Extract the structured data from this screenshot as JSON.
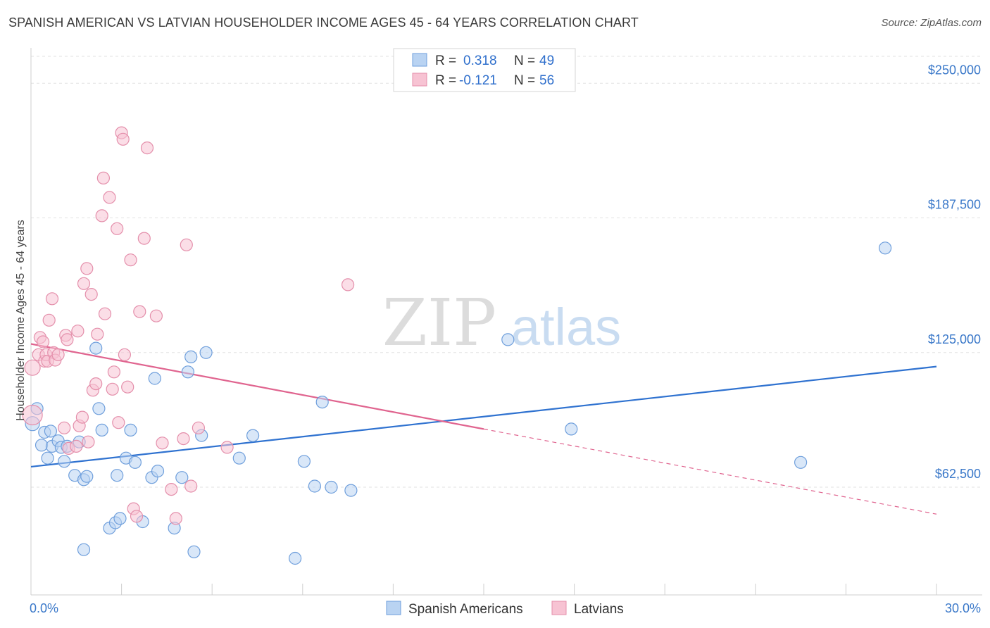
{
  "header": {
    "title": "SPANISH AMERICAN VS LATVIAN HOUSEHOLDER INCOME AGES 45 - 64 YEARS CORRELATION CHART",
    "source": "Source: ZipAtlas.com"
  },
  "watermark": {
    "zip": "ZIP",
    "atlas": "atlas"
  },
  "colors": {
    "blue": "#2f72d0",
    "blue_fill": "#b9d3f2",
    "pink": "#e0648f",
    "pink_fill": "#f7c3d3",
    "tick": "#3a78c9"
  },
  "legend": {
    "rows": [
      {
        "r_label": "R =",
        "r_value": "0.318",
        "n_label": "N =",
        "n_value": "49"
      },
      {
        "r_label": "R =",
        "r_value": "-0.121",
        "n_label": "N =",
        "n_value": "56"
      }
    ]
  },
  "bottom_legend": [
    "Spanish Americans",
    "Latvians"
  ],
  "chart_data": {
    "type": "scatter",
    "title": "SPANISH AMERICAN VS LATVIAN HOUSEHOLDER INCOME AGES 45 - 64 YEARS CORRELATION CHART",
    "xlabel": "",
    "ylabel": "Householder Income Ages 45 - 64 years",
    "xlim": [
      0,
      30
    ],
    "ylim": [
      12500,
      262500
    ],
    "x_tick_labels": [
      "0.0%",
      "30.0%"
    ],
    "y_ticks": [
      62500,
      125000,
      187500,
      250000
    ],
    "y_tick_labels": [
      "$62,500",
      "$125,000",
      "$187,500",
      "$250,000"
    ],
    "series": [
      {
        "name": "Spanish Americans",
        "R": 0.318,
        "N": 49,
        "trend": {
          "x0": 0,
          "y0": 72000,
          "x1": 30,
          "y1": 118500
        },
        "points": [
          [
            0.05,
            92000
          ],
          [
            0.2,
            99000
          ],
          [
            0.35,
            82000
          ],
          [
            0.45,
            88000
          ],
          [
            0.55,
            76000
          ],
          [
            0.65,
            88500
          ],
          [
            0.7,
            81500
          ],
          [
            0.9,
            84000
          ],
          [
            1.0,
            81000
          ],
          [
            1.1,
            74500
          ],
          [
            1.2,
            81500
          ],
          [
            1.45,
            68000
          ],
          [
            1.6,
            83500
          ],
          [
            1.75,
            66000
          ],
          [
            1.85,
            67500
          ],
          [
            1.75,
            33500
          ],
          [
            2.15,
            127000
          ],
          [
            2.25,
            99000
          ],
          [
            2.35,
            89000
          ],
          [
            2.6,
            43500
          ],
          [
            2.8,
            46000
          ],
          [
            2.85,
            68000
          ],
          [
            2.95,
            48000
          ],
          [
            3.15,
            76000
          ],
          [
            3.3,
            89000
          ],
          [
            3.45,
            74000
          ],
          [
            3.7,
            46500
          ],
          [
            4.0,
            67000
          ],
          [
            4.1,
            113000
          ],
          [
            4.2,
            70000
          ],
          [
            4.75,
            43500
          ],
          [
            5.0,
            67000
          ],
          [
            5.2,
            116000
          ],
          [
            5.3,
            123000
          ],
          [
            5.4,
            32500
          ],
          [
            5.65,
            86500
          ],
          [
            5.8,
            125000
          ],
          [
            6.9,
            76000
          ],
          [
            7.35,
            86500
          ],
          [
            8.75,
            29500
          ],
          [
            9.05,
            74500
          ],
          [
            9.4,
            63000
          ],
          [
            9.65,
            102000
          ],
          [
            9.95,
            62500
          ],
          [
            10.6,
            61000
          ],
          [
            15.8,
            131000
          ],
          [
            17.9,
            89500
          ],
          [
            25.5,
            74000
          ],
          [
            28.3,
            173500
          ]
        ]
      },
      {
        "name": "Latvians",
        "R": -0.121,
        "N": 56,
        "trend": {
          "x0": 0,
          "y0": 129000,
          "x1": 15.0,
          "y1": 89500,
          "x_dash_end": 30,
          "y_dash_end": 50000
        },
        "points": [
          [
            0.05,
            118000
          ],
          [
            0.05,
            96000
          ],
          [
            0.25,
            124000
          ],
          [
            0.3,
            132000
          ],
          [
            0.4,
            130000
          ],
          [
            0.45,
            121000
          ],
          [
            0.5,
            124000
          ],
          [
            0.55,
            121000
          ],
          [
            0.6,
            140000
          ],
          [
            0.7,
            150000
          ],
          [
            0.75,
            125000
          ],
          [
            0.8,
            121500
          ],
          [
            0.9,
            124000
          ],
          [
            1.1,
            90000
          ],
          [
            1.15,
            133000
          ],
          [
            1.2,
            131000
          ],
          [
            1.25,
            80500
          ],
          [
            1.5,
            81500
          ],
          [
            1.55,
            135000
          ],
          [
            1.6,
            91000
          ],
          [
            1.7,
            95000
          ],
          [
            1.75,
            157000
          ],
          [
            1.85,
            164000
          ],
          [
            1.9,
            83500
          ],
          [
            2.0,
            152000
          ],
          [
            2.05,
            107500
          ],
          [
            2.15,
            110500
          ],
          [
            2.2,
            133500
          ],
          [
            2.35,
            188500
          ],
          [
            2.4,
            206000
          ],
          [
            2.45,
            143000
          ],
          [
            2.6,
            197000
          ],
          [
            2.7,
            108000
          ],
          [
            2.75,
            116000
          ],
          [
            2.85,
            182500
          ],
          [
            2.9,
            92500
          ],
          [
            3.0,
            227000
          ],
          [
            3.05,
            224000
          ],
          [
            3.1,
            124000
          ],
          [
            3.2,
            109000
          ],
          [
            3.3,
            168000
          ],
          [
            3.4,
            52500
          ],
          [
            3.5,
            49000
          ],
          [
            3.6,
            144000
          ],
          [
            3.75,
            178000
          ],
          [
            3.85,
            220000
          ],
          [
            4.15,
            142000
          ],
          [
            4.35,
            83000
          ],
          [
            4.65,
            61500
          ],
          [
            4.8,
            48000
          ],
          [
            5.05,
            85000
          ],
          [
            5.15,
            175000
          ],
          [
            5.3,
            63000
          ],
          [
            5.55,
            90000
          ],
          [
            6.5,
            81000
          ],
          [
            10.5,
            156500
          ]
        ]
      }
    ]
  }
}
